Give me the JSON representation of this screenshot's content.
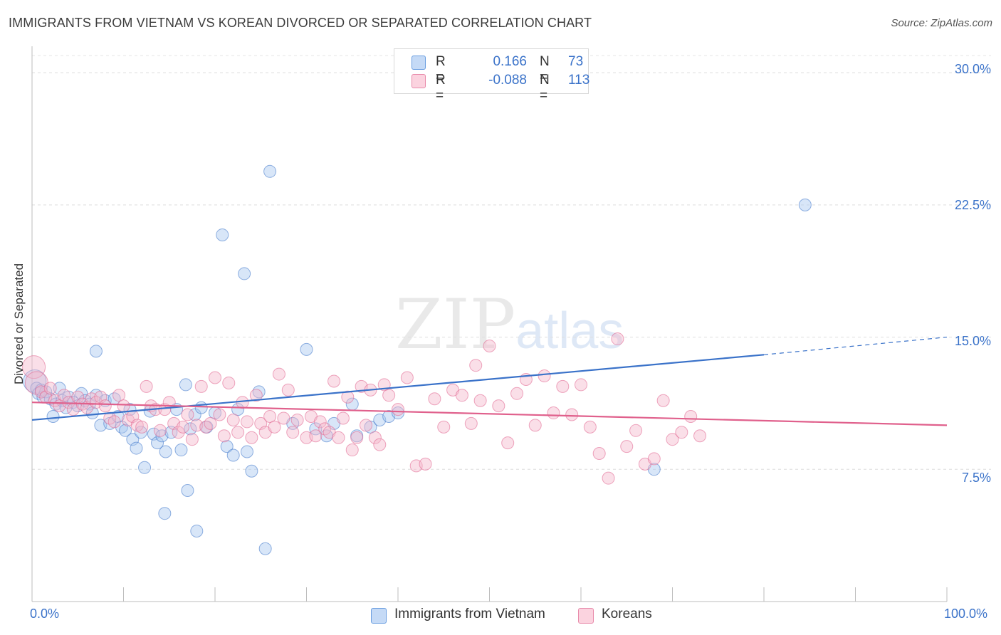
{
  "title": "IMMIGRANTS FROM VIETNAM VS KOREAN DIVORCED OR SEPARATED CORRELATION CHART",
  "source": "Source: ZipAtlas.com",
  "watermark": {
    "zip": "ZIP",
    "atlas": "atlas"
  },
  "legend_top": {
    "rows": [
      {
        "r_label": "R =",
        "r_value": "0.166",
        "n_label": "N =",
        "n_value": "73",
        "color": "#a8c8f0"
      },
      {
        "r_label": "R =",
        "r_value": "-0.088",
        "n_label": "N =",
        "n_value": "113",
        "color": "#f5b8cb"
      }
    ]
  },
  "legend_bottom": [
    {
      "label": "Immigrants from Vietnam",
      "color": "#a8c8f0"
    },
    {
      "label": "Koreans",
      "color": "#f5b8cb"
    }
  ],
  "chart_data": {
    "type": "scatter",
    "title": "IMMIGRANTS FROM VIETNAM VS KOREAN DIVORCED OR SEPARATED CORRELATION CHART",
    "xlabel": "",
    "ylabel": "Divorced or Separated",
    "xlim": [
      0,
      100
    ],
    "ylim": [
      0,
      31.5
    ],
    "x_tick_labels": [
      "0.0%",
      "100.0%"
    ],
    "y_ticks": [
      7.5,
      15.0,
      22.5,
      30.0
    ],
    "y_tick_labels": [
      "7.5%",
      "15.0%",
      "22.5%",
      "30.0%"
    ],
    "grid": "horizontal dashed",
    "legend_position": "top-center",
    "series": [
      {
        "name": "Immigrants from Vietnam",
        "color": "#3a72c9",
        "fill": "#a8c8f0",
        "trend": {
          "x0": 0,
          "y0": 10.3,
          "x1": 80,
          "y1": 14.0,
          "dashed_to": 100,
          "dashed_y1": 15.0
        },
        "points": [
          [
            0.3,
            12.5
          ],
          [
            0.5,
            12.1
          ],
          [
            0.7,
            11.8
          ],
          [
            1.0,
            12.0
          ],
          [
            1.2,
            11.6
          ],
          [
            1.5,
            11.9
          ],
          [
            2.0,
            11.5
          ],
          [
            2.3,
            10.5
          ],
          [
            2.6,
            11.2
          ],
          [
            3.0,
            12.1
          ],
          [
            3.3,
            11.4
          ],
          [
            3.7,
            11.0
          ],
          [
            4.0,
            11.6
          ],
          [
            4.5,
            11.3
          ],
          [
            5.0,
            11.1
          ],
          [
            5.4,
            11.8
          ],
          [
            5.8,
            11.4
          ],
          [
            6.3,
            11.2
          ],
          [
            6.6,
            10.7
          ],
          [
            7.0,
            11.7
          ],
          [
            7.5,
            10.0
          ],
          [
            8.0,
            11.4
          ],
          [
            8.5,
            10.1
          ],
          [
            9.0,
            11.5
          ],
          [
            9.4,
            10.5
          ],
          [
            9.8,
            9.9
          ],
          [
            10.2,
            9.7
          ],
          [
            10.7,
            10.9
          ],
          [
            11.0,
            9.2
          ],
          [
            11.4,
            8.7
          ],
          [
            11.9,
            9.6
          ],
          [
            12.3,
            7.6
          ],
          [
            12.9,
            10.8
          ],
          [
            13.3,
            9.5
          ],
          [
            13.7,
            9.0
          ],
          [
            14.2,
            9.4
          ],
          [
            14.6,
            8.5
          ],
          [
            15.2,
            9.6
          ],
          [
            15.8,
            10.9
          ],
          [
            16.3,
            8.6
          ],
          [
            16.8,
            12.3
          ],
          [
            17.3,
            9.8
          ],
          [
            17.8,
            10.6
          ],
          [
            18.5,
            11.0
          ],
          [
            19.1,
            9.9
          ],
          [
            20.0,
            10.7
          ],
          [
            20.8,
            20.8
          ],
          [
            21.3,
            8.8
          ],
          [
            22.0,
            8.3
          ],
          [
            23.2,
            18.6
          ],
          [
            23.5,
            8.5
          ],
          [
            24.0,
            7.4
          ],
          [
            24.8,
            11.9
          ],
          [
            18.0,
            4.0
          ],
          [
            17.0,
            6.3
          ],
          [
            14.5,
            5.0
          ],
          [
            7.0,
            14.2
          ],
          [
            22.5,
            10.9
          ],
          [
            26.0,
            24.4
          ],
          [
            28.5,
            10.1
          ],
          [
            30.0,
            14.3
          ],
          [
            31.0,
            9.8
          ],
          [
            32.2,
            9.4
          ],
          [
            33.0,
            10.1
          ],
          [
            35.0,
            11.2
          ],
          [
            35.5,
            9.4
          ],
          [
            37.0,
            9.9
          ],
          [
            38.0,
            10.3
          ],
          [
            39.0,
            10.5
          ],
          [
            40.0,
            10.7
          ],
          [
            68.0,
            7.5
          ],
          [
            84.5,
            22.5
          ],
          [
            25.5,
            3.0
          ]
        ]
      },
      {
        "name": "Koreans",
        "color": "#e0608c",
        "fill": "#f5b8cb",
        "trend": {
          "x0": 0,
          "y0": 11.3,
          "x1": 100,
          "y1": 10.0
        },
        "points": [
          [
            0.2,
            13.3
          ],
          [
            0.5,
            12.4
          ],
          [
            1.0,
            11.9
          ],
          [
            1.5,
            11.6
          ],
          [
            2.0,
            12.1
          ],
          [
            2.5,
            11.4
          ],
          [
            3.0,
            11.1
          ],
          [
            3.5,
            11.7
          ],
          [
            4.0,
            11.3
          ],
          [
            4.5,
            10.9
          ],
          [
            5.0,
            11.6
          ],
          [
            5.5,
            11.2
          ],
          [
            6.0,
            11.0
          ],
          [
            6.5,
            11.5
          ],
          [
            7.0,
            11.3
          ],
          [
            7.5,
            11.6
          ],
          [
            8.0,
            11.1
          ],
          [
            8.5,
            10.4
          ],
          [
            9.0,
            10.2
          ],
          [
            9.5,
            11.7
          ],
          [
            10.0,
            11.1
          ],
          [
            10.5,
            10.3
          ],
          [
            11.0,
            10.5
          ],
          [
            11.5,
            10.0
          ],
          [
            12.0,
            9.9
          ],
          [
            12.5,
            12.2
          ],
          [
            13.0,
            11.1
          ],
          [
            13.5,
            10.9
          ],
          [
            14.0,
            9.7
          ],
          [
            14.5,
            10.9
          ],
          [
            15.0,
            11.3
          ],
          [
            15.5,
            10.1
          ],
          [
            16.0,
            9.6
          ],
          [
            16.5,
            9.9
          ],
          [
            17.0,
            10.6
          ],
          [
            17.5,
            9.2
          ],
          [
            18.0,
            10.0
          ],
          [
            18.5,
            12.2
          ],
          [
            19.0,
            9.9
          ],
          [
            19.5,
            10.1
          ],
          [
            20.0,
            12.7
          ],
          [
            20.5,
            10.6
          ],
          [
            21.0,
            9.4
          ],
          [
            21.5,
            12.4
          ],
          [
            22.0,
            10.3
          ],
          [
            22.5,
            9.6
          ],
          [
            23.0,
            11.3
          ],
          [
            23.5,
            10.2
          ],
          [
            24.0,
            9.3
          ],
          [
            24.5,
            11.7
          ],
          [
            25.0,
            10.1
          ],
          [
            25.5,
            9.6
          ],
          [
            26.0,
            10.5
          ],
          [
            26.5,
            9.9
          ],
          [
            27.0,
            12.9
          ],
          [
            27.5,
            10.4
          ],
          [
            28.0,
            12.0
          ],
          [
            28.5,
            9.6
          ],
          [
            29.0,
            10.3
          ],
          [
            30.0,
            9.3
          ],
          [
            30.5,
            10.5
          ],
          [
            31.0,
            9.4
          ],
          [
            31.5,
            10.2
          ],
          [
            32.0,
            9.8
          ],
          [
            32.5,
            9.6
          ],
          [
            33.0,
            12.5
          ],
          [
            33.5,
            9.3
          ],
          [
            34.0,
            10.4
          ],
          [
            34.5,
            11.6
          ],
          [
            35.0,
            8.6
          ],
          [
            35.5,
            9.3
          ],
          [
            36.0,
            12.2
          ],
          [
            36.5,
            10.0
          ],
          [
            37.0,
            12.0
          ],
          [
            37.5,
            9.3
          ],
          [
            38.0,
            8.9
          ],
          [
            38.5,
            12.3
          ],
          [
            39.0,
            11.7
          ],
          [
            40.0,
            10.9
          ],
          [
            41.0,
            12.7
          ],
          [
            42.0,
            7.7
          ],
          [
            43.0,
            7.8
          ],
          [
            44.0,
            11.5
          ],
          [
            45.0,
            9.9
          ],
          [
            46.0,
            12.0
          ],
          [
            47.0,
            11.7
          ],
          [
            48.0,
            10.1
          ],
          [
            48.5,
            13.4
          ],
          [
            49.0,
            11.4
          ],
          [
            50.0,
            14.5
          ],
          [
            51.0,
            11.1
          ],
          [
            52.0,
            9.0
          ],
          [
            53.0,
            11.8
          ],
          [
            54.0,
            12.6
          ],
          [
            55.0,
            10.0
          ],
          [
            56.0,
            12.8
          ],
          [
            57.0,
            10.7
          ],
          [
            58.0,
            12.2
          ],
          [
            59.0,
            10.6
          ],
          [
            60.0,
            12.3
          ],
          [
            61.0,
            9.9
          ],
          [
            62.0,
            8.4
          ],
          [
            63.0,
            7.0
          ],
          [
            64.0,
            14.9
          ],
          [
            65.0,
            8.8
          ],
          [
            66.0,
            9.7
          ],
          [
            67.0,
            7.8
          ],
          [
            68.0,
            8.1
          ],
          [
            69.0,
            11.4
          ],
          [
            70.0,
            9.2
          ],
          [
            71.0,
            9.6
          ],
          [
            72.0,
            10.5
          ],
          [
            73.0,
            9.4
          ]
        ]
      }
    ]
  }
}
